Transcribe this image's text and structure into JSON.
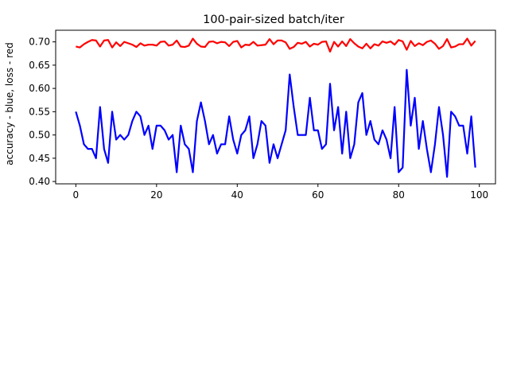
{
  "chart_data": {
    "type": "line",
    "title": "100-pair-sized batch/iter",
    "xlabel": "",
    "ylabel": "accuracy - blue, loss - red",
    "xlim": [
      -5,
      104
    ],
    "ylim": [
      0.395,
      0.725
    ],
    "xticks": [
      0,
      20,
      40,
      60,
      80,
      100
    ],
    "xtick_labels": [
      "0",
      "20",
      "40",
      "60",
      "80",
      "100"
    ],
    "yticks": [
      0.4,
      0.45,
      0.5,
      0.55,
      0.6,
      0.65,
      0.7
    ],
    "ytick_labels": [
      "0.40",
      "0.45",
      "0.50",
      "0.55",
      "0.60",
      "0.65",
      "0.70"
    ],
    "grid": false,
    "legend": "none",
    "series": [
      {
        "color": "#0000ff",
        "x": [
          0,
          1,
          2,
          3,
          4,
          5,
          6,
          7,
          8,
          9,
          10,
          11,
          12,
          13,
          14,
          15,
          16,
          17,
          18,
          19,
          20,
          21,
          22,
          23,
          24,
          25,
          26,
          27,
          28,
          29,
          30,
          31,
          32,
          33,
          34,
          35,
          36,
          37,
          38,
          39,
          40,
          41,
          42,
          43,
          44,
          45,
          46,
          47,
          48,
          49,
          50,
          51,
          52,
          53,
          54,
          55,
          56,
          57,
          58,
          59,
          60,
          61,
          62,
          63,
          64,
          65,
          66,
          67,
          68,
          69,
          70,
          71,
          72,
          73,
          74,
          75,
          76,
          77,
          78,
          79,
          80,
          81,
          82,
          83,
          84,
          85,
          86,
          87,
          88,
          89,
          90,
          91,
          92,
          93,
          94,
          95,
          96,
          97,
          98,
          99
        ],
        "y": [
          0.55,
          0.52,
          0.48,
          0.47,
          0.47,
          0.45,
          0.56,
          0.47,
          0.44,
          0.55,
          0.49,
          0.5,
          0.49,
          0.5,
          0.53,
          0.55,
          0.54,
          0.5,
          0.52,
          0.47,
          0.52,
          0.52,
          0.51,
          0.49,
          0.5,
          0.42,
          0.52,
          0.48,
          0.47,
          0.42,
          0.53,
          0.57,
          0.53,
          0.48,
          0.5,
          0.46,
          0.48,
          0.48,
          0.54,
          0.49,
          0.46,
          0.5,
          0.51,
          0.54,
          0.45,
          0.48,
          0.53,
          0.52,
          0.44,
          0.48,
          0.45,
          0.48,
          0.51,
          0.63,
          0.56,
          0.5,
          0.5,
          0.5,
          0.58,
          0.51,
          0.51,
          0.47,
          0.48,
          0.61,
          0.51,
          0.56,
          0.46,
          0.55,
          0.45,
          0.48,
          0.57,
          0.59,
          0.5,
          0.53,
          0.49,
          0.48,
          0.51,
          0.49,
          0.45,
          0.56,
          0.42,
          0.43,
          0.64,
          0.52,
          0.58,
          0.47,
          0.53,
          0.47,
          0.42,
          0.48,
          0.56,
          0.5,
          0.41,
          0.55,
          0.54,
          0.52,
          0.52,
          0.46,
          0.54,
          0.43
        ]
      },
      {
        "color": "#ff0000",
        "x": [
          0,
          1,
          2,
          3,
          4,
          5,
          6,
          7,
          8,
          9,
          10,
          11,
          12,
          13,
          14,
          15,
          16,
          17,
          18,
          19,
          20,
          21,
          22,
          23,
          24,
          25,
          26,
          27,
          28,
          29,
          30,
          31,
          32,
          33,
          34,
          35,
          36,
          37,
          38,
          39,
          40,
          41,
          42,
          43,
          44,
          45,
          46,
          47,
          48,
          49,
          50,
          51,
          52,
          53,
          54,
          55,
          56,
          57,
          58,
          59,
          60,
          61,
          62,
          63,
          64,
          65,
          66,
          67,
          68,
          69,
          70,
          71,
          72,
          73,
          74,
          75,
          76,
          77,
          78,
          79,
          80,
          81,
          82,
          83,
          84,
          85,
          86,
          87,
          88,
          89,
          90,
          91,
          92,
          93,
          94,
          95,
          96,
          97,
          98,
          99
        ],
        "y": [
          0.69,
          0.688,
          0.695,
          0.7,
          0.704,
          0.703,
          0.69,
          0.703,
          0.704,
          0.688,
          0.699,
          0.691,
          0.7,
          0.697,
          0.694,
          0.689,
          0.697,
          0.692,
          0.694,
          0.694,
          0.692,
          0.7,
          0.701,
          0.692,
          0.694,
          0.703,
          0.69,
          0.689,
          0.692,
          0.707,
          0.696,
          0.69,
          0.689,
          0.7,
          0.701,
          0.697,
          0.7,
          0.699,
          0.691,
          0.7,
          0.702,
          0.688,
          0.694,
          0.693,
          0.7,
          0.692,
          0.693,
          0.694,
          0.706,
          0.695,
          0.703,
          0.703,
          0.699,
          0.685,
          0.689,
          0.698,
          0.696,
          0.7,
          0.69,
          0.696,
          0.694,
          0.7,
          0.701,
          0.679,
          0.7,
          0.69,
          0.701,
          0.691,
          0.706,
          0.697,
          0.69,
          0.686,
          0.696,
          0.686,
          0.695,
          0.692,
          0.701,
          0.698,
          0.701,
          0.694,
          0.704,
          0.701,
          0.683,
          0.702,
          0.691,
          0.697,
          0.693,
          0.7,
          0.703,
          0.696,
          0.685,
          0.691,
          0.706,
          0.688,
          0.69,
          0.695,
          0.695,
          0.707,
          0.692,
          0.702
        ]
      }
    ]
  }
}
